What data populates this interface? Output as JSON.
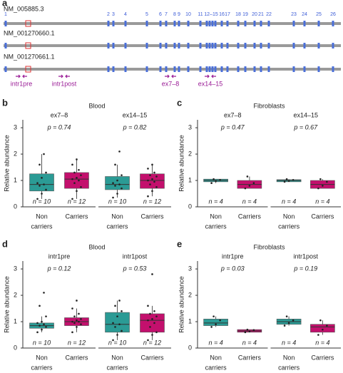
{
  "diagram": {
    "panel": "a",
    "transcripts": [
      "NM_005885.3",
      "NM_001270660.1",
      "NM_001270661.1"
    ],
    "exons": [
      "1",
      "2",
      "3",
      "4",
      "5",
      "6",
      "7",
      "8",
      "9",
      "10",
      "11",
      "12–15",
      "16",
      "17",
      "18",
      "19",
      "20",
      "21",
      "22",
      "23",
      "24",
      "25",
      "26"
    ],
    "primers": [
      "intr1pre",
      "intr1post",
      "ex7–8",
      "ex14–15"
    ]
  },
  "chart_data": [
    {
      "type": "box",
      "panel": "b",
      "title": "Blood",
      "ylabel": "Relative abundance",
      "ylim": [
        0,
        3.3
      ],
      "yticks": [
        0,
        1,
        2,
        3
      ],
      "categories": [
        [
          "Non",
          "carriers"
        ],
        [
          "Carriers"
        ]
      ],
      "colors": [
        "#2b9b95",
        "#c3106d"
      ],
      "groups": [
        {
          "name": "ex7–8",
          "p_label": "p = 0.74",
          "boxes": [
            {
              "n_label": "n = 10",
              "whisker_low": 0.3,
              "q1": 0.6,
              "median": 0.85,
              "q3": 1.25,
              "whisker_high": 2.0,
              "points": [
                0.3,
                0.5,
                0.65,
                0.8,
                0.85,
                0.9,
                1.1,
                1.3,
                1.6,
                2.0
              ]
            },
            {
              "n_label": "n = 12",
              "whisker_low": 0.3,
              "q1": 0.7,
              "median": 1.05,
              "q3": 1.3,
              "whisker_high": 1.8,
              "points": [
                0.3,
                0.6,
                0.75,
                0.9,
                1.0,
                1.05,
                1.1,
                1.2,
                1.3,
                1.4,
                1.6,
                1.8
              ]
            }
          ]
        },
        {
          "name": "ex14–15",
          "p_label": "p = 0.82",
          "boxes": [
            {
              "n_label": "n = 10",
              "whisker_low": 0.35,
              "q1": 0.65,
              "median": 0.85,
              "q3": 1.15,
              "whisker_high": 1.6,
              "points": [
                0.35,
                0.5,
                0.7,
                0.8,
                0.85,
                0.9,
                1.0,
                1.2,
                1.6,
                2.1
              ]
            },
            {
              "n_label": "n = 12",
              "whisker_low": 0.4,
              "q1": 0.7,
              "median": 1.0,
              "q3": 1.25,
              "whisker_high": 1.6,
              "points": [
                0.4,
                0.6,
                0.75,
                0.85,
                0.95,
                1.0,
                1.05,
                1.15,
                1.2,
                1.3,
                1.45,
                1.6
              ]
            }
          ]
        }
      ]
    },
    {
      "type": "box",
      "panel": "c",
      "title": "Fibroblasts",
      "ylabel": "Relative abundance",
      "ylim": [
        0,
        3.3
      ],
      "yticks": [
        0,
        1,
        2,
        3
      ],
      "categories": [
        [
          "Non",
          "carriers"
        ],
        [
          "Carriers"
        ]
      ],
      "colors": [
        "#2b9b95",
        "#c3106d"
      ],
      "groups": [
        {
          "name": "ex7–8",
          "p_label": "p = 0.47",
          "boxes": [
            {
              "n_label": "n = 4",
              "whisker_low": 0.9,
              "q1": 0.95,
              "median": 1.0,
              "q3": 1.05,
              "whisker_high": 1.05,
              "points": [
                0.9,
                0.98,
                1.02,
                1.05
              ]
            },
            {
              "n_label": "n = 4",
              "whisker_low": 0.7,
              "q1": 0.7,
              "median": 0.85,
              "q3": 1.0,
              "whisker_high": 1.15,
              "points": [
                0.7,
                0.8,
                0.9,
                1.15
              ]
            }
          ]
        },
        {
          "name": "ex14–15",
          "p_label": "p = 0.67",
          "boxes": [
            {
              "n_label": "n = 4",
              "whisker_low": 0.95,
              "q1": 0.95,
              "median": 1.0,
              "q3": 1.03,
              "whisker_high": 1.05,
              "points": [
                0.95,
                0.98,
                1.02,
                1.05
              ]
            },
            {
              "n_label": "n = 4",
              "whisker_low": 0.7,
              "q1": 0.7,
              "median": 0.85,
              "q3": 1.0,
              "whisker_high": 1.05,
              "points": [
                0.7,
                0.8,
                0.95,
                1.05
              ]
            }
          ]
        }
      ]
    },
    {
      "type": "box",
      "panel": "d",
      "title": "Blood",
      "ylabel": "Relative abundance",
      "ylim": [
        0,
        3.3
      ],
      "yticks": [
        0,
        1,
        2,
        3
      ],
      "categories": [
        [
          "Non",
          "carriers"
        ],
        [
          "Carriers"
        ]
      ],
      "colors": [
        "#2b9b95",
        "#c3106d"
      ],
      "groups": [
        {
          "name": "intr1pre",
          "p_label": "p = 0.12",
          "boxes": [
            {
              "n_label": "n = 10",
              "whisker_low": 0.6,
              "q1": 0.75,
              "median": 0.85,
              "q3": 0.95,
              "whisker_high": 1.2,
              "points": [
                0.6,
                0.7,
                0.8,
                0.85,
                0.9,
                0.95,
                1.0,
                1.2,
                1.6,
                2.1
              ]
            },
            {
              "n_label": "n = 12",
              "whisker_low": 0.6,
              "q1": 0.85,
              "median": 1.0,
              "q3": 1.15,
              "whisker_high": 1.5,
              "points": [
                0.6,
                0.8,
                0.9,
                0.95,
                1.0,
                1.0,
                1.05,
                1.1,
                1.2,
                1.3,
                1.5,
                1.8
              ]
            }
          ]
        },
        {
          "name": "intr1post",
          "p_label": "p = 0.53",
          "boxes": [
            {
              "n_label": "n = 10",
              "whisker_low": 0.3,
              "q1": 0.6,
              "median": 0.9,
              "q3": 1.35,
              "whisker_high": 1.8,
              "points": [
                0.3,
                0.5,
                0.65,
                0.8,
                0.9,
                0.95,
                1.2,
                1.4,
                1.6,
                1.8
              ]
            },
            {
              "n_label": "n = 12",
              "whisker_low": 0.3,
              "q1": 0.6,
              "median": 1.05,
              "q3": 1.3,
              "whisker_high": 1.6,
              "points": [
                0.3,
                0.5,
                0.6,
                0.8,
                0.95,
                1.05,
                1.1,
                1.2,
                1.3,
                1.4,
                1.6,
                2.8
              ]
            }
          ]
        }
      ]
    },
    {
      "type": "box",
      "panel": "e",
      "title": "Fibroblasts",
      "ylabel": "Relative abundance",
      "ylim": [
        0,
        3.3
      ],
      "yticks": [
        0,
        1,
        2,
        3
      ],
      "categories": [
        [
          "Non",
          "carriers"
        ],
        [
          "Carriers"
        ]
      ],
      "colors": [
        "#2b9b95",
        "#c3106d"
      ],
      "groups": [
        {
          "name": "intr1pre",
          "p_label": "p = 0.03",
          "boxes": [
            {
              "n_label": "n = 4",
              "whisker_low": 0.8,
              "q1": 0.85,
              "median": 0.95,
              "q3": 1.1,
              "whisker_high": 1.2,
              "points": [
                0.8,
                0.9,
                1.05,
                1.2
              ]
            },
            {
              "n_label": "n = 4",
              "whisker_low": 0.6,
              "q1": 0.6,
              "median": 0.65,
              "q3": 0.7,
              "whisker_high": 0.7,
              "points": [
                0.6,
                0.63,
                0.68,
                0.7
              ]
            }
          ]
        },
        {
          "name": "intr1post",
          "p_label": "p = 0.19",
          "boxes": [
            {
              "n_label": "n = 4",
              "whisker_low": 0.85,
              "q1": 0.9,
              "median": 1.0,
              "q3": 1.1,
              "whisker_high": 1.2,
              "points": [
                0.85,
                0.95,
                1.05,
                1.2
              ]
            },
            {
              "n_label": "n = 4",
              "whisker_low": 0.5,
              "q1": 0.6,
              "median": 0.8,
              "q3": 0.9,
              "whisker_high": 1.05,
              "points": [
                0.5,
                0.7,
                0.85,
                1.05
              ]
            }
          ]
        }
      ]
    }
  ]
}
